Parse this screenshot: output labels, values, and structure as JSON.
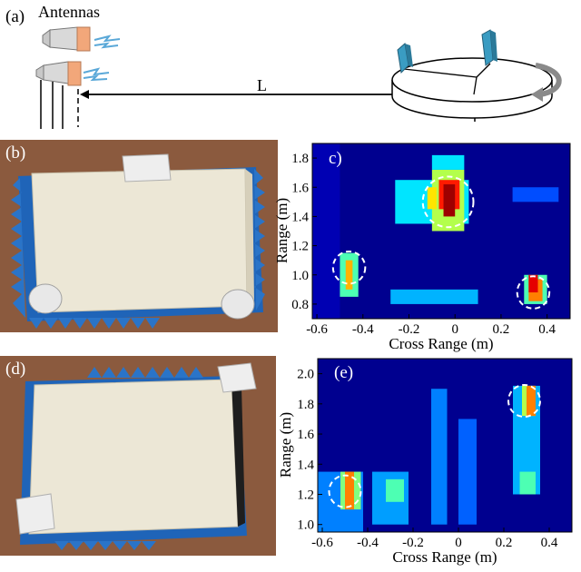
{
  "panel_labels": {
    "a": "(a)",
    "b": "(b)",
    "c": "c)",
    "d": "(d)",
    "e": "(e)"
  },
  "schematic": {
    "antennas_label": "Antennas",
    "distance_label": "L"
  },
  "colors": {
    "jet_low": "#00008f",
    "jet_high": "#800000",
    "photo_background": "#8b5a3e",
    "absorber_blue": "#1f64b8",
    "box_cream": "#ece7d6",
    "horn_body": "#d9d9d9",
    "horn_aperture": "#f2a77a",
    "reflector_teal": "#3a9cc2"
  },
  "chart_data": [
    {
      "type": "heatmap",
      "id": "c",
      "xlabel": "Cross Range (m)",
      "ylabel": "Range (m)",
      "xlim": [
        -0.62,
        0.5
      ],
      "ylim": [
        0.7,
        1.9
      ],
      "xticks": [
        -0.6,
        -0.4,
        -0.2,
        0,
        0.2,
        0.4
      ],
      "xtick_labels": [
        "-0.6",
        "-0.4",
        "-0.2",
        "0",
        "0.2",
        "0.4"
      ],
      "yticks": [
        0.8,
        1.0,
        1.2,
        1.4,
        1.6,
        1.8
      ],
      "ytick_labels": [
        "0.8",
        "1.0",
        "1.2",
        "1.4",
        "1.6",
        "1.8"
      ],
      "colormap": "jet",
      "grid": false,
      "cells": [
        {
          "x0": -0.62,
          "x1": -0.5,
          "y0": 0.7,
          "y1": 1.9,
          "v": 0.05
        },
        {
          "x0": -0.5,
          "x1": -0.42,
          "y0": 0.85,
          "y1": 1.15,
          "v": 0.45
        },
        {
          "x0": -0.475,
          "x1": -0.445,
          "y0": 0.9,
          "y1": 1.1,
          "v": 0.7
        },
        {
          "x0": -0.26,
          "x1": 0.06,
          "y0": 1.35,
          "y1": 1.65,
          "v": 0.35
        },
        {
          "x0": -0.1,
          "x1": 0.04,
          "y0": 1.3,
          "y1": 1.72,
          "v": 0.55
        },
        {
          "x0": -0.07,
          "x1": 0.02,
          "y0": 1.45,
          "y1": 1.65,
          "v": 0.85
        },
        {
          "x0": -0.05,
          "x1": 0.0,
          "y0": 1.4,
          "y1": 1.62,
          "v": 0.97
        },
        {
          "x0": -0.12,
          "x1": -0.08,
          "y0": 1.45,
          "y1": 1.6,
          "v": 0.65
        },
        {
          "x0": -0.1,
          "x1": 0.04,
          "y0": 1.72,
          "y1": 1.82,
          "v": 0.35
        },
        {
          "x0": -0.28,
          "x1": 0.1,
          "y0": 0.8,
          "y1": 0.9,
          "v": 0.3
        },
        {
          "x0": 0.3,
          "x1": 0.4,
          "y0": 0.8,
          "y1": 1.0,
          "v": 0.45
        },
        {
          "x0": 0.32,
          "x1": 0.38,
          "y0": 0.82,
          "y1": 0.97,
          "v": 0.75
        },
        {
          "x0": 0.32,
          "x1": 0.36,
          "y0": 0.88,
          "y1": 1.0,
          "v": 0.9
        },
        {
          "x0": 0.25,
          "x1": 0.45,
          "y0": 1.5,
          "y1": 1.6,
          "v": 0.2
        }
      ],
      "markers": [
        {
          "cx": -0.03,
          "cy": 1.5,
          "r": 0.11
        },
        {
          "cx": -0.46,
          "cy": 1.05,
          "r": 0.07
        },
        {
          "cx": 0.34,
          "cy": 0.88,
          "r": 0.07
        }
      ]
    },
    {
      "type": "heatmap",
      "id": "e",
      "xlabel": "Cross Range (m)",
      "ylabel": "Range (m)",
      "xlim": [
        -0.62,
        0.5
      ],
      "ylim": [
        0.95,
        2.1
      ],
      "xticks": [
        -0.6,
        -0.4,
        -0.2,
        0,
        0.2,
        0.4
      ],
      "xtick_labels": [
        "-0.6",
        "-0.4",
        "-0.2",
        "0",
        "0.2",
        "0.4"
      ],
      "yticks": [
        1.0,
        1.2,
        1.4,
        1.6,
        1.8,
        2.0
      ],
      "ytick_labels": [
        "1.0",
        "1.2",
        "1.4",
        "1.6",
        "1.8",
        "2.0"
      ],
      "colormap": "jet",
      "grid": false,
      "cells": [
        {
          "x0": -0.62,
          "x1": -0.42,
          "y0": 0.95,
          "y1": 1.35,
          "v": 0.25
        },
        {
          "x0": -0.52,
          "x1": -0.43,
          "y0": 1.1,
          "y1": 1.35,
          "v": 0.5
        },
        {
          "x0": -0.5,
          "x1": -0.46,
          "y0": 1.1,
          "y1": 1.35,
          "v": 0.75
        },
        {
          "x0": -0.38,
          "x1": -0.22,
          "y0": 1.0,
          "y1": 1.35,
          "v": 0.28
        },
        {
          "x0": -0.32,
          "x1": -0.24,
          "y0": 1.15,
          "y1": 1.3,
          "v": 0.45
        },
        {
          "x0": -0.12,
          "x1": -0.05,
          "y0": 1.0,
          "y1": 1.9,
          "v": 0.25
        },
        {
          "x0": 0.0,
          "x1": 0.08,
          "y0": 1.0,
          "y1": 1.7,
          "v": 0.22
        },
        {
          "x0": 0.24,
          "x1": 0.36,
          "y0": 1.2,
          "y1": 1.92,
          "v": 0.3
        },
        {
          "x0": 0.27,
          "x1": 0.34,
          "y0": 1.2,
          "y1": 1.35,
          "v": 0.45
        },
        {
          "x0": 0.28,
          "x1": 0.34,
          "y0": 1.72,
          "y1": 1.92,
          "v": 0.55
        },
        {
          "x0": 0.3,
          "x1": 0.34,
          "y0": 1.72,
          "y1": 1.92,
          "v": 0.75
        }
      ],
      "markers": [
        {
          "cx": 0.29,
          "cy": 1.82,
          "r": 0.07
        },
        {
          "cx": -0.5,
          "cy": 1.22,
          "r": 0.07
        }
      ]
    }
  ]
}
